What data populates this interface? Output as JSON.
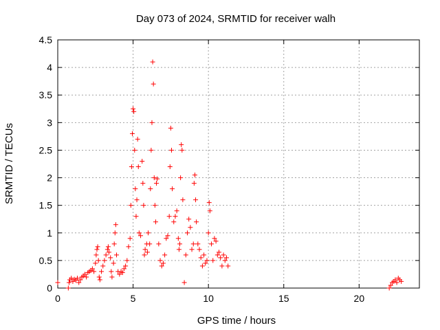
{
  "chart_data": {
    "type": "scatter",
    "title": "Day 073 of 2024, SRMTID for receiver walh",
    "xlabel": "GPS time / hours",
    "ylabel": "SRMTID / TECUs",
    "xlim": [
      0,
      24
    ],
    "ylim": [
      0,
      4.5
    ],
    "xticks": [
      0,
      5,
      10,
      15,
      20
    ],
    "xtick_labels": [
      "0",
      "5",
      "10",
      "15",
      "20"
    ],
    "yticks": [
      0,
      0.5,
      1,
      1.5,
      2,
      2.5,
      3,
      3.5,
      4,
      4.5
    ],
    "ytick_labels": [
      "0",
      "0.5",
      "1",
      "1.5",
      "2",
      "2.5",
      "3",
      "3.5",
      "4",
      "4.5"
    ],
    "grid": true,
    "marker": "plus",
    "color": "#ff0000",
    "series": [
      {
        "name": "SRMTID",
        "points": [
          [
            0.0,
            0.1
          ],
          [
            0.7,
            0.0
          ],
          [
            0.75,
            0.1
          ],
          [
            0.8,
            0.15
          ],
          [
            0.9,
            0.18
          ],
          [
            1.0,
            0.12
          ],
          [
            1.1,
            0.16
          ],
          [
            1.2,
            0.14
          ],
          [
            1.3,
            0.18
          ],
          [
            1.4,
            0.1
          ],
          [
            1.5,
            0.15
          ],
          [
            1.6,
            0.2
          ],
          [
            1.7,
            0.22
          ],
          [
            1.8,
            0.25
          ],
          [
            1.9,
            0.2
          ],
          [
            2.0,
            0.28
          ],
          [
            2.1,
            0.3
          ],
          [
            2.2,
            0.32
          ],
          [
            2.3,
            0.35
          ],
          [
            2.4,
            0.3
          ],
          [
            2.5,
            0.45
          ],
          [
            2.55,
            0.6
          ],
          [
            2.6,
            0.7
          ],
          [
            2.65,
            0.75
          ],
          [
            2.7,
            0.5
          ],
          [
            2.75,
            0.2
          ],
          [
            2.8,
            0.15
          ],
          [
            2.9,
            0.3
          ],
          [
            3.0,
            0.4
          ],
          [
            3.1,
            0.5
          ],
          [
            3.2,
            0.6
          ],
          [
            3.3,
            0.7
          ],
          [
            3.35,
            0.75
          ],
          [
            3.4,
            0.65
          ],
          [
            3.5,
            0.55
          ],
          [
            3.55,
            0.3
          ],
          [
            3.6,
            0.2
          ],
          [
            3.7,
            0.45
          ],
          [
            3.75,
            0.8
          ],
          [
            3.8,
            1.0
          ],
          [
            3.85,
            1.15
          ],
          [
            3.9,
            0.6
          ],
          [
            4.0,
            0.3
          ],
          [
            4.1,
            0.25
          ],
          [
            4.2,
            0.3
          ],
          [
            4.3,
            0.28
          ],
          [
            4.4,
            0.35
          ],
          [
            4.5,
            0.4
          ],
          [
            4.6,
            0.5
          ],
          [
            4.7,
            0.75
          ],
          [
            4.8,
            0.9
          ],
          [
            4.85,
            1.5
          ],
          [
            4.9,
            2.2
          ],
          [
            4.95,
            2.8
          ],
          [
            5.0,
            3.25
          ],
          [
            5.05,
            3.2
          ],
          [
            5.1,
            2.5
          ],
          [
            5.15,
            1.8
          ],
          [
            5.2,
            1.3
          ],
          [
            5.25,
            1.6
          ],
          [
            5.3,
            2.7
          ],
          [
            5.35,
            2.2
          ],
          [
            5.4,
            1.0
          ],
          [
            5.5,
            0.95
          ],
          [
            5.6,
            2.3
          ],
          [
            5.65,
            1.9
          ],
          [
            5.7,
            1.5
          ],
          [
            5.75,
            0.6
          ],
          [
            5.8,
            0.7
          ],
          [
            5.9,
            0.8
          ],
          [
            5.95,
            0.65
          ],
          [
            6.0,
            1.0
          ],
          [
            6.1,
            0.8
          ],
          [
            6.15,
            1.8
          ],
          [
            6.2,
            2.5
          ],
          [
            6.25,
            3.0
          ],
          [
            6.3,
            4.1
          ],
          [
            6.35,
            3.7
          ],
          [
            6.4,
            2.0
          ],
          [
            6.45,
            1.5
          ],
          [
            6.5,
            1.2
          ],
          [
            6.55,
            1.9
          ],
          [
            6.6,
            1.98
          ],
          [
            6.7,
            0.8
          ],
          [
            6.8,
            0.5
          ],
          [
            6.9,
            0.4
          ],
          [
            7.0,
            0.45
          ],
          [
            7.1,
            0.6
          ],
          [
            7.2,
            0.9
          ],
          [
            7.3,
            0.95
          ],
          [
            7.4,
            1.3
          ],
          [
            7.45,
            2.2
          ],
          [
            7.5,
            2.9
          ],
          [
            7.55,
            2.5
          ],
          [
            7.6,
            1.8
          ],
          [
            7.7,
            1.2
          ],
          [
            7.8,
            1.3
          ],
          [
            7.9,
            1.4
          ],
          [
            8.0,
            0.9
          ],
          [
            8.05,
            0.7
          ],
          [
            8.1,
            0.8
          ],
          [
            8.15,
            2.0
          ],
          [
            8.2,
            2.6
          ],
          [
            8.25,
            2.5
          ],
          [
            8.3,
            1.6
          ],
          [
            8.4,
            0.1
          ],
          [
            8.5,
            0.6
          ],
          [
            8.6,
            1.0
          ],
          [
            8.7,
            1.25
          ],
          [
            8.8,
            1.1
          ],
          [
            8.9,
            0.7
          ],
          [
            9.0,
            0.8
          ],
          [
            9.05,
            1.9
          ],
          [
            9.1,
            2.05
          ],
          [
            9.15,
            1.6
          ],
          [
            9.2,
            1.2
          ],
          [
            9.3,
            0.8
          ],
          [
            9.4,
            0.7
          ],
          [
            9.5,
            0.55
          ],
          [
            9.6,
            0.4
          ],
          [
            9.7,
            0.6
          ],
          [
            9.8,
            0.45
          ],
          [
            9.9,
            0.5
          ],
          [
            10.0,
            1.0
          ],
          [
            10.05,
            1.55
          ],
          [
            10.1,
            1.4
          ],
          [
            10.2,
            0.8
          ],
          [
            10.3,
            0.5
          ],
          [
            10.4,
            0.9
          ],
          [
            10.5,
            0.85
          ],
          [
            10.6,
            0.6
          ],
          [
            10.7,
            0.65
          ],
          [
            10.8,
            0.55
          ],
          [
            10.9,
            0.4
          ],
          [
            11.0,
            0.6
          ],
          [
            11.1,
            0.5
          ],
          [
            11.2,
            0.55
          ],
          [
            11.3,
            0.4
          ],
          [
            22.0,
            0.0
          ],
          [
            22.1,
            0.05
          ],
          [
            22.2,
            0.1
          ],
          [
            22.3,
            0.12
          ],
          [
            22.4,
            0.15
          ],
          [
            22.5,
            0.1
          ],
          [
            22.6,
            0.18
          ],
          [
            22.7,
            0.15
          ],
          [
            22.8,
            0.12
          ]
        ]
      }
    ]
  }
}
